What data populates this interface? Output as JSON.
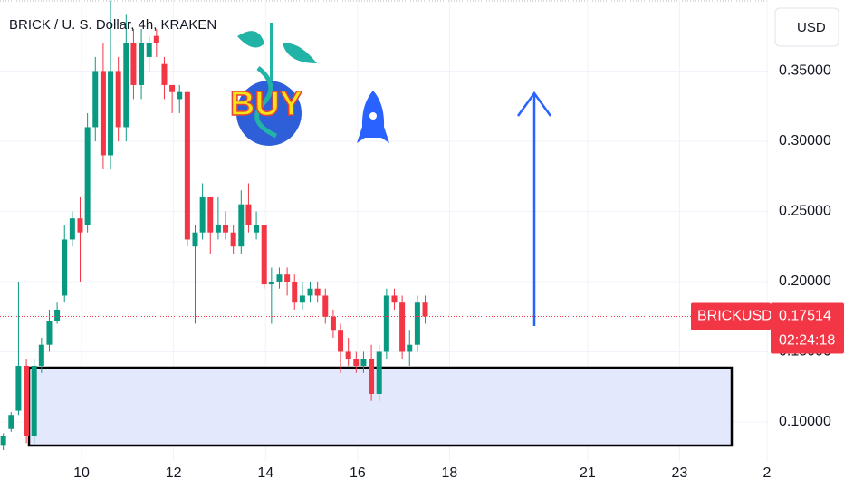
{
  "chart_data": {
    "type": "candlestick",
    "title": "BRICK / U. S. Dollar, 4h, KRAKEN",
    "currency_button": "USD",
    "annotation": "BUY",
    "symbol": "BRICKUSD",
    "last_price": 0.17514,
    "countdown": "02:24:18",
    "colors": {
      "up": "#089981",
      "down": "#f23645"
    },
    "grid": true,
    "xlim": [
      8.228,
      24.92
    ],
    "ylim": [
      0.0716,
      0.4006
    ],
    "xticks": [
      10,
      12,
      14,
      16,
      18,
      21,
      23,
      {
        "value": 24.9,
        "label": "2"
      }
    ],
    "yticks": [
      {
        "value": 0.1,
        "label": "0.10000"
      },
      {
        "value": 0.15,
        "label": "0.15000"
      },
      {
        "value": 0.2,
        "label": "0.20000"
      },
      {
        "value": 0.25,
        "label": "0.25000"
      },
      {
        "value": 0.3,
        "label": "0.30000"
      },
      {
        "value": 0.35,
        "label": "0.35000"
      }
    ],
    "x": [
      8.3,
      8.47,
      8.63,
      8.8,
      8.97,
      9.13,
      9.3,
      9.47,
      9.63,
      9.8,
      9.97,
      10.13,
      10.3,
      10.47,
      10.63,
      10.8,
      10.97,
      11.13,
      11.3,
      11.47,
      11.63,
      11.8,
      11.97,
      12.13,
      12.3,
      12.47,
      12.63,
      12.8,
      12.97,
      13.13,
      13.3,
      13.47,
      13.63,
      13.8,
      13.97,
      14.13,
      14.3,
      14.47,
      14.63,
      14.8,
      14.97,
      15.13,
      15.3,
      15.47,
      15.63,
      15.8,
      15.97,
      16.13,
      16.3,
      16.47,
      16.63,
      16.8,
      16.97,
      17.13,
      17.3,
      17.47
    ],
    "open": [
      0.083,
      0.095,
      0.108,
      0.14,
      0.09,
      0.14,
      0.155,
      0.172,
      0.19,
      0.23,
      0.245,
      0.24,
      0.31,
      0.35,
      0.29,
      0.35,
      0.31,
      0.37,
      0.34,
      0.36,
      0.375,
      0.355,
      0.34,
      0.33,
      0.335,
      0.225,
      0.235,
      0.26,
      0.235,
      0.24,
      0.235,
      0.225,
      0.255,
      0.235,
      0.24,
      0.198,
      0.2,
      0.205,
      0.2,
      0.185,
      0.19,
      0.195,
      0.19,
      0.175,
      0.165,
      0.15,
      0.145,
      0.14,
      0.145,
      0.12,
      0.15,
      0.19,
      0.185,
      0.15,
      0.155,
      0.185
    ],
    "high": [
      0.092,
      0.107,
      0.2,
      0.145,
      0.145,
      0.16,
      0.18,
      0.185,
      0.24,
      0.25,
      0.26,
      0.32,
      0.36,
      0.37,
      0.4,
      0.36,
      0.39,
      0.38,
      0.38,
      0.375,
      0.38,
      0.36,
      0.34,
      0.34,
      0.335,
      0.24,
      0.27,
      0.26,
      0.26,
      0.25,
      0.24,
      0.265,
      0.27,
      0.25,
      0.24,
      0.21,
      0.21,
      0.21,
      0.205,
      0.2,
      0.2,
      0.2,
      0.195,
      0.18,
      0.17,
      0.16,
      0.15,
      0.15,
      0.155,
      0.155,
      0.195,
      0.195,
      0.19,
      0.165,
      0.19,
      0.19
    ],
    "low": [
      0.08,
      0.093,
      0.105,
      0.085,
      0.085,
      0.135,
      0.15,
      0.17,
      0.185,
      0.225,
      0.2,
      0.235,
      0.3,
      0.28,
      0.28,
      0.3,
      0.3,
      0.33,
      0.33,
      0.35,
      0.36,
      0.33,
      0.32,
      0.32,
      0.225,
      0.17,
      0.23,
      0.22,
      0.23,
      0.23,
      0.22,
      0.22,
      0.235,
      0.23,
      0.195,
      0.17,
      0.195,
      0.19,
      0.18,
      0.18,
      0.185,
      0.185,
      0.17,
      0.16,
      0.135,
      0.14,
      0.135,
      0.135,
      0.115,
      0.115,
      0.145,
      0.18,
      0.145,
      0.14,
      0.15,
      0.17
    ],
    "close": [
      0.09,
      0.105,
      0.14,
      0.09,
      0.14,
      0.155,
      0.172,
      0.18,
      0.23,
      0.245,
      0.235,
      0.31,
      0.35,
      0.29,
      0.35,
      0.31,
      0.37,
      0.34,
      0.37,
      0.37,
      0.37,
      0.34,
      0.335,
      0.335,
      0.23,
      0.235,
      0.26,
      0.235,
      0.24,
      0.235,
      0.225,
      0.255,
      0.24,
      0.24,
      0.198,
      0.2,
      0.205,
      0.2,
      0.185,
      0.19,
      0.195,
      0.19,
      0.175,
      0.165,
      0.15,
      0.145,
      0.14,
      0.145,
      0.12,
      0.15,
      0.19,
      0.185,
      0.15,
      0.155,
      0.185,
      0.17514
    ]
  }
}
